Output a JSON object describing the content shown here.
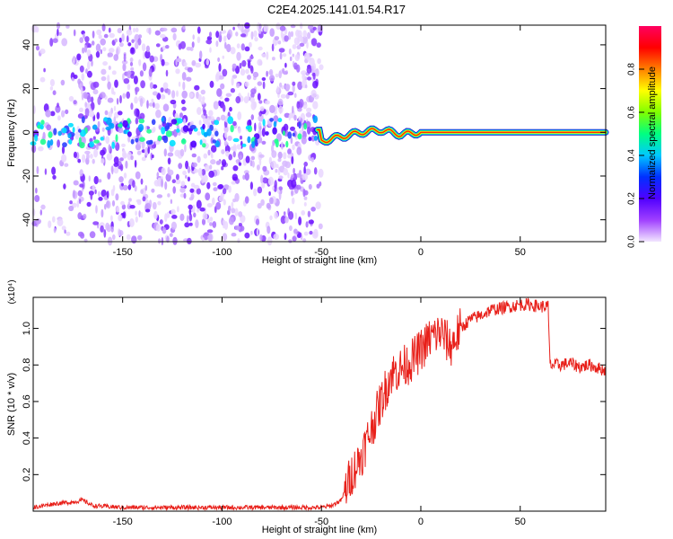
{
  "title": "C2E4.2025.141.01.54.R17",
  "chart_data": [
    {
      "type": "heatmap",
      "xlabel": "Height of straight line (km)",
      "ylabel": "Frequency (Hz)",
      "xlim": [
        -195,
        93
      ],
      "ylim": [
        -50,
        49
      ],
      "xticks": [
        -150,
        -100,
        -50,
        0,
        50
      ],
      "yticks": [
        -40,
        -20,
        0,
        20,
        40
      ],
      "colorbar": {
        "label": "Normalized spectral amplitude",
        "range": [
          0.0,
          1.0
        ],
        "ticks": [
          0.0,
          0.2,
          0.4,
          0.6,
          0.8
        ],
        "colors": [
          "#f2e6ff",
          "#a040ff",
          "#5000ff",
          "#0030ff",
          "#00c8ff",
          "#00ff80",
          "#80ff00",
          "#ffff00",
          "#ff8000",
          "#ff0000",
          "#ff0060"
        ]
      },
      "signal_band": {
        "description_points": [
          {
            "x": -50,
            "freq": -4
          },
          {
            "x": -40,
            "freq": -2
          },
          {
            "x": -30,
            "freq": 0
          },
          {
            "x": -20,
            "freq": 1
          },
          {
            "x": -10,
            "freq": -1
          },
          {
            "x": 0,
            "freq": 0
          },
          {
            "x": 50,
            "freq": 0
          },
          {
            "x": 93,
            "freq": 0
          }
        ]
      }
    },
    {
      "type": "line",
      "xlabel": "Height of straight line (km)",
      "ylabel": "SNR (10 * v/v)",
      "y_multiplier": "(x10⁴)",
      "xlim": [
        -195,
        93
      ],
      "ylim": [
        0,
        1.17
      ],
      "xticks": [
        -150,
        -100,
        -50,
        0,
        50
      ],
      "yticks": [
        0.2,
        0.4,
        0.6,
        0.8,
        1.0
      ],
      "series": [
        {
          "color": "#e8201a",
          "x": [
            -195,
            -185,
            -175,
            -170,
            -165,
            -150,
            -120,
            -90,
            -60,
            -50,
            -45,
            -40,
            -35,
            -30,
            -25,
            -20,
            -15,
            -10,
            -5,
            0,
            5,
            10,
            15,
            20,
            25,
            30,
            35,
            40,
            45,
            50,
            55,
            60,
            64,
            65,
            70,
            75,
            80,
            85,
            90,
            93
          ],
          "values": [
            0.02,
            0.04,
            0.05,
            0.06,
            0.03,
            0.02,
            0.02,
            0.02,
            0.02,
            0.02,
            0.03,
            0.06,
            0.2,
            0.3,
            0.45,
            0.6,
            0.75,
            0.78,
            0.82,
            0.88,
            0.95,
            0.98,
            0.9,
            1.0,
            1.05,
            1.07,
            1.1,
            1.11,
            1.12,
            1.13,
            1.13,
            1.12,
            1.12,
            0.8,
            0.8,
            0.81,
            0.79,
            0.8,
            0.78,
            0.77
          ]
        }
      ]
    }
  ]
}
